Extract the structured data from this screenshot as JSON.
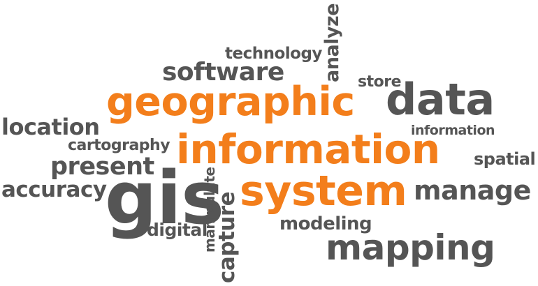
{
  "colors": {
    "gray": "#555555",
    "orange": "#f37e1b"
  },
  "words": {
    "technology": "technology",
    "analyze": "analyze",
    "software": "software",
    "store": "store",
    "geographic": "geographic",
    "data": "data",
    "location": "location",
    "information_small": "information",
    "cartography": "cartography",
    "information": "information",
    "present": "present",
    "spatial": "spatial",
    "accuracy": "accuracy",
    "gis": "gis",
    "manipulate": "manipulate",
    "capture": "capture",
    "system": "system",
    "manage": "manage",
    "modeling": "modeling",
    "digital": "digital",
    "mapping": "mapping"
  }
}
